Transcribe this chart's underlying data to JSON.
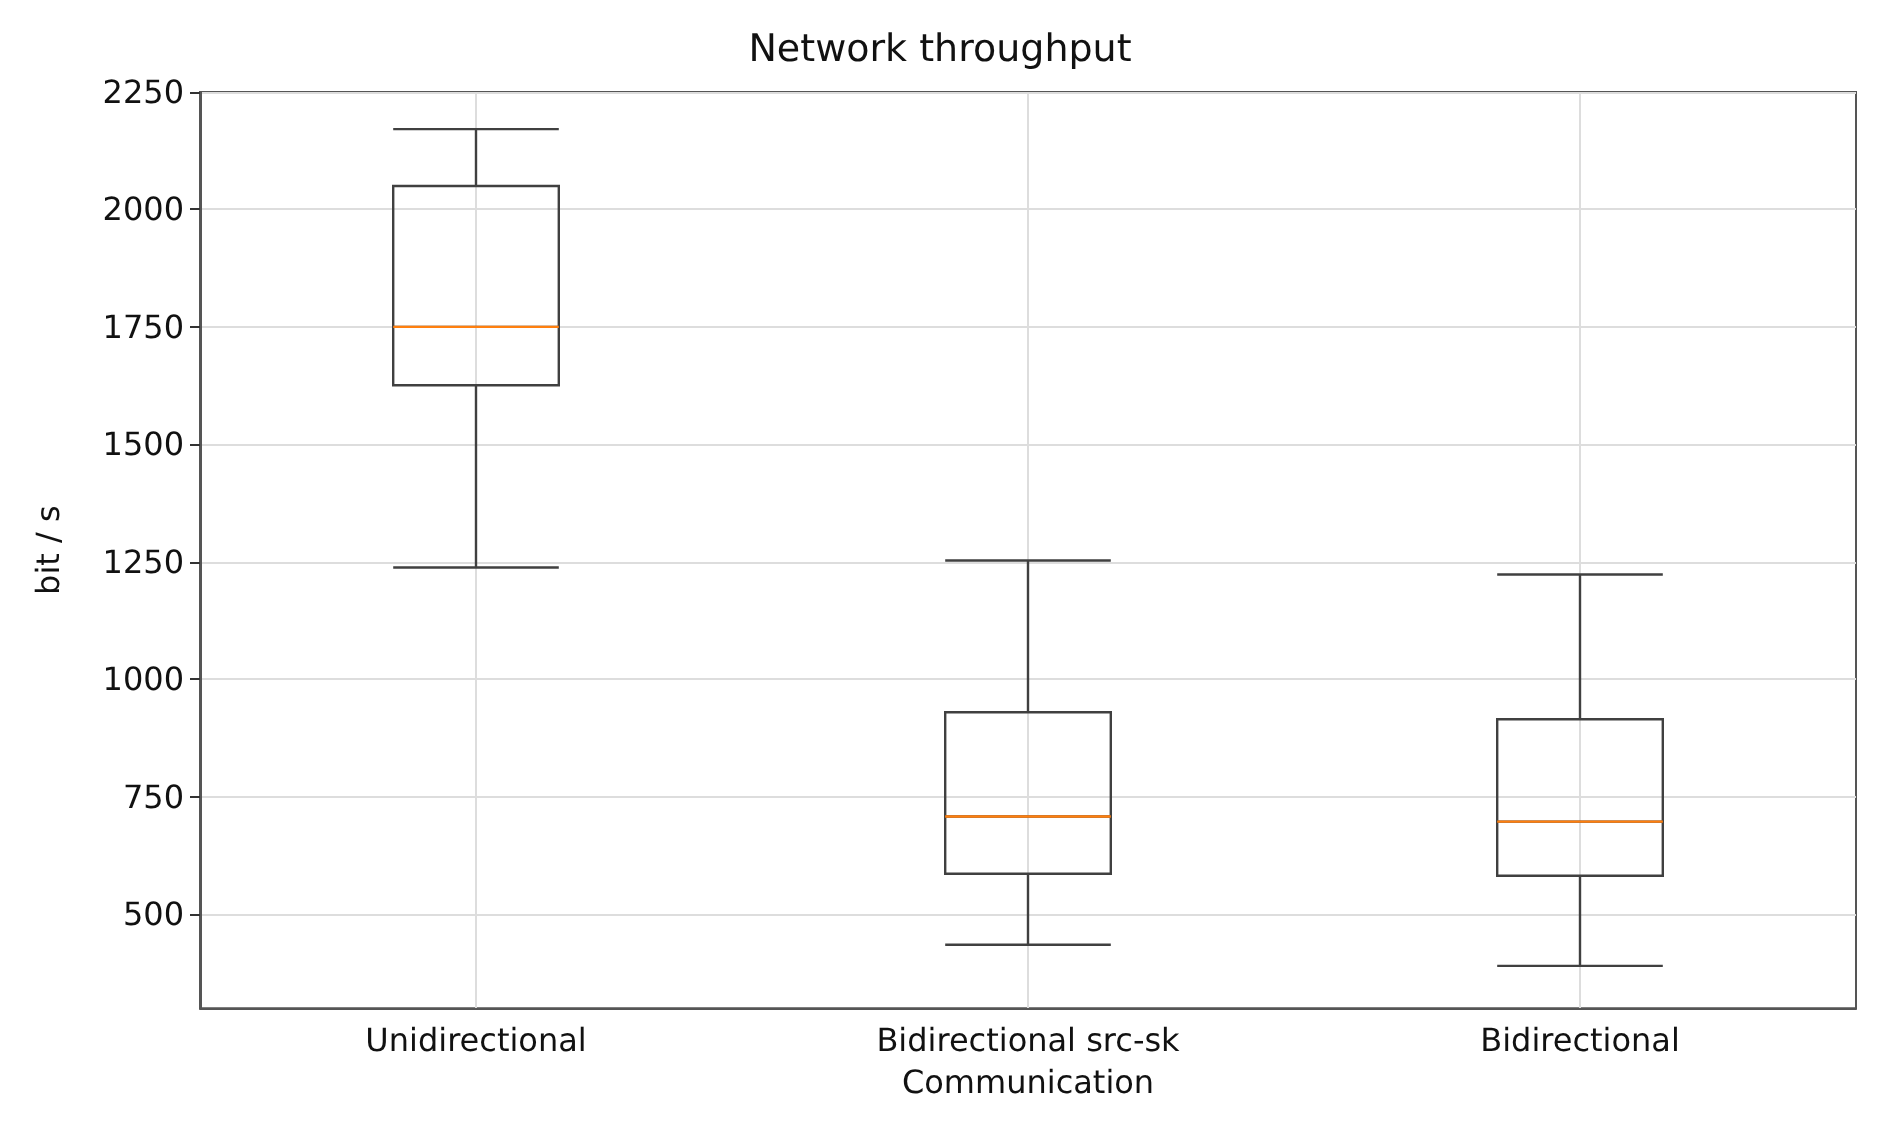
{
  "chart_data": {
    "type": "box",
    "title": "Network throughput",
    "xlabel": "Communication",
    "ylabel": "bit / s",
    "categories": [
      "Unidirectional",
      "Bidirectional src-sk",
      "Bidirectional"
    ],
    "series": [
      {
        "color": "#404040",
        "boxes": [
          {
            "low": 1238,
            "q1": 1626,
            "median": 1750,
            "q3": 2050,
            "high": 2171
          },
          {
            "low": 435,
            "q1": 586,
            "median": 708,
            "q3": 930,
            "high": 1253
          },
          {
            "low": 390,
            "q1": 582,
            "median": 697,
            "q3": 915,
            "high": 1223
          }
        ]
      }
    ],
    "ylim": [
      300,
      2250
    ],
    "yticks": [
      500,
      750,
      1000,
      1250,
      1500,
      1750,
      2000,
      2250
    ],
    "grid": true
  }
}
